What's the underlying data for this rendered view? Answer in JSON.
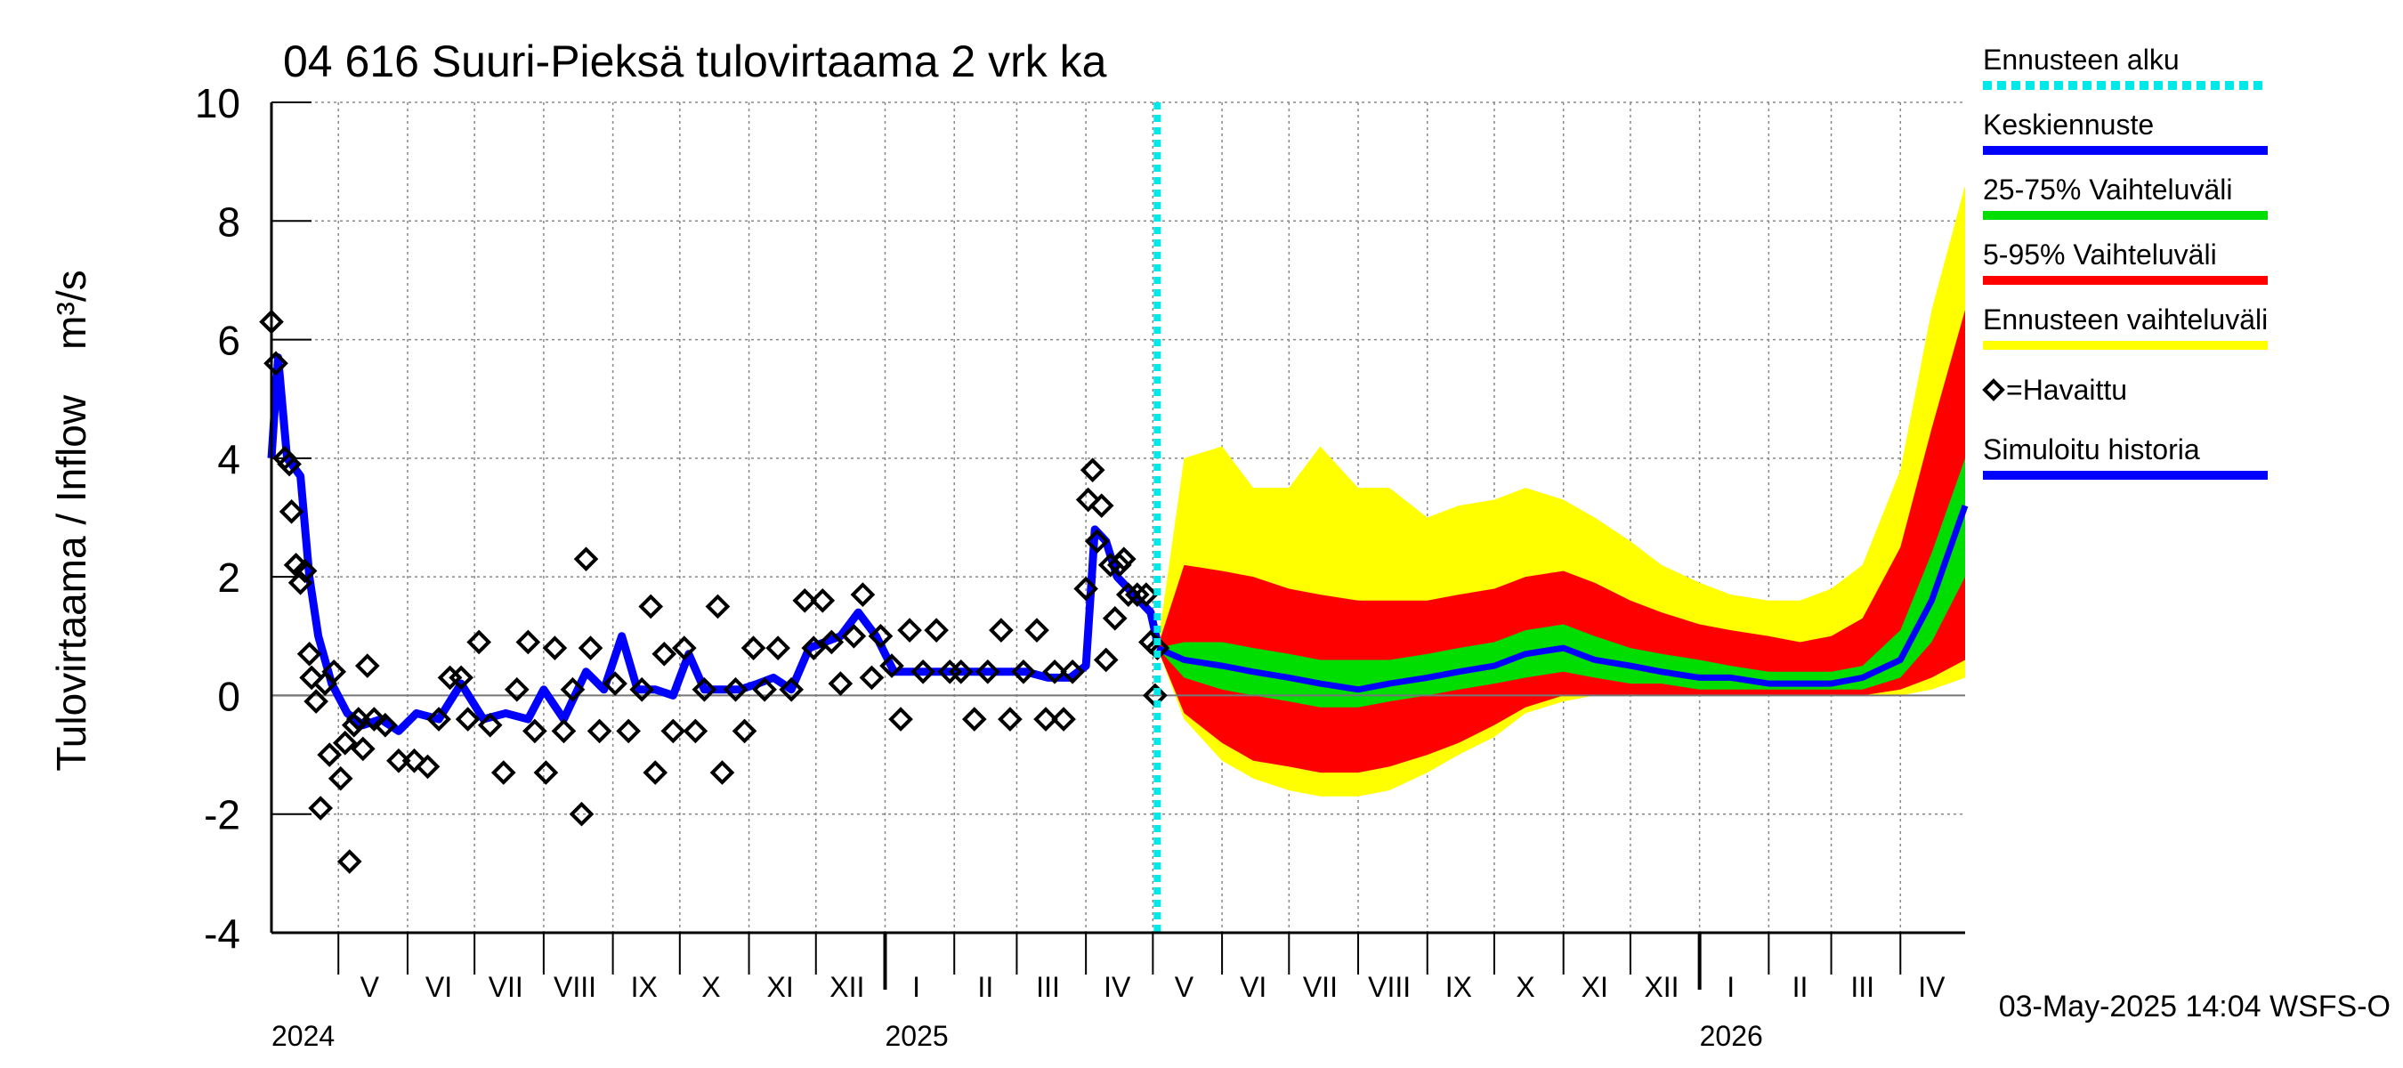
{
  "chart_data": {
    "type": "line",
    "title": "04 616 Suuri-Pieksä tulovirtaama 2 vrk ka",
    "ylabel": "Tulovirtaama / Inflow    m³/s",
    "ylim": [
      -4,
      10
    ],
    "yticks": [
      "-4",
      "-2",
      "0",
      "2",
      "4",
      "6",
      "8",
      "10"
    ],
    "grid": true,
    "legend_position": "right",
    "footer": "03-May-2025 14:04 WSFS-O",
    "x_range": [
      "2024-04-01",
      "2026-04-30"
    ],
    "forecast_start": "2025-05-03",
    "month_labels": [
      {
        "label": "V",
        "date": "2024-05-15"
      },
      {
        "label": "VI",
        "date": "2024-06-15"
      },
      {
        "label": "VII",
        "date": "2024-07-15"
      },
      {
        "label": "VIII",
        "date": "2024-08-15"
      },
      {
        "label": "IX",
        "date": "2024-09-15"
      },
      {
        "label": "X",
        "date": "2024-10-15"
      },
      {
        "label": "XI",
        "date": "2024-11-15"
      },
      {
        "label": "XII",
        "date": "2024-12-15"
      },
      {
        "label": "I",
        "date": "2025-01-15"
      },
      {
        "label": "II",
        "date": "2025-02-15"
      },
      {
        "label": "III",
        "date": "2025-03-15"
      },
      {
        "label": "IV",
        "date": "2025-04-15"
      },
      {
        "label": "V",
        "date": "2025-05-15"
      },
      {
        "label": "VI",
        "date": "2025-06-15"
      },
      {
        "label": "VII",
        "date": "2025-07-15"
      },
      {
        "label": "VIII",
        "date": "2025-08-15"
      },
      {
        "label": "IX",
        "date": "2025-09-15"
      },
      {
        "label": "X",
        "date": "2025-10-15"
      },
      {
        "label": "XI",
        "date": "2025-11-15"
      },
      {
        "label": "XII",
        "date": "2025-12-15"
      },
      {
        "label": "I",
        "date": "2026-01-15"
      },
      {
        "label": "II",
        "date": "2026-02-15"
      },
      {
        "label": "III",
        "date": "2026-03-15"
      },
      {
        "label": "IV",
        "date": "2026-04-15"
      }
    ],
    "year_labels": [
      {
        "label": "2024",
        "date": "2024-04-01"
      },
      {
        "label": "2025",
        "date": "2025-01-01"
      },
      {
        "label": "2026",
        "date": "2026-01-01"
      }
    ],
    "legend": [
      {
        "label": "Ennusteen alku",
        "color": "#00e8e8",
        "style": "dotted"
      },
      {
        "label": "Keskiennuste",
        "color": "#0000ff",
        "style": "solid"
      },
      {
        "label": "25-75% Vaihteluväli",
        "color": "#00dd00",
        "style": "solid"
      },
      {
        "label": "5-95% Vaihteluväli",
        "color": "#ff0000",
        "style": "solid"
      },
      {
        "label": "Ennusteen vaihteluväli",
        "color": "#ffff00",
        "style": "solid"
      },
      {
        "label": "=Havaittu",
        "color": "#000000",
        "style": "diamond"
      },
      {
        "label": "Simuloitu historia",
        "color": "#0000ff",
        "style": "solid"
      }
    ],
    "simulated_history": [
      [
        "2024-04-01",
        4.0
      ],
      [
        "2024-04-04",
        5.7
      ],
      [
        "2024-04-08",
        4.0
      ],
      [
        "2024-04-14",
        3.7
      ],
      [
        "2024-04-18",
        2.0
      ],
      [
        "2024-04-22",
        1.0
      ],
      [
        "2024-04-28",
        0.2
      ],
      [
        "2024-05-05",
        -0.3
      ],
      [
        "2024-05-12",
        -0.5
      ],
      [
        "2024-05-20",
        -0.4
      ],
      [
        "2024-05-28",
        -0.6
      ],
      [
        "2024-06-05",
        -0.3
      ],
      [
        "2024-06-15",
        -0.4
      ],
      [
        "2024-06-25",
        0.2
      ],
      [
        "2024-07-05",
        -0.4
      ],
      [
        "2024-07-15",
        -0.3
      ],
      [
        "2024-07-25",
        -0.4
      ],
      [
        "2024-08-01",
        0.1
      ],
      [
        "2024-08-10",
        -0.4
      ],
      [
        "2024-08-20",
        0.4
      ],
      [
        "2024-08-28",
        0.1
      ],
      [
        "2024-09-05",
        1.0
      ],
      [
        "2024-09-12",
        0.1
      ],
      [
        "2024-09-20",
        0.1
      ],
      [
        "2024-09-28",
        0.0
      ],
      [
        "2024-10-05",
        0.7
      ],
      [
        "2024-10-12",
        0.1
      ],
      [
        "2024-10-20",
        0.1
      ],
      [
        "2024-10-28",
        0.1
      ],
      [
        "2024-11-05",
        0.2
      ],
      [
        "2024-11-12",
        0.3
      ],
      [
        "2024-11-20",
        0.1
      ],
      [
        "2024-11-28",
        0.8
      ],
      [
        "2024-12-05",
        0.9
      ],
      [
        "2024-12-12",
        1.0
      ],
      [
        "2024-12-20",
        1.4
      ],
      [
        "2024-12-28",
        1.0
      ],
      [
        "2025-01-05",
        0.4
      ],
      [
        "2025-01-15",
        0.4
      ],
      [
        "2025-01-25",
        0.4
      ],
      [
        "2025-02-05",
        0.4
      ],
      [
        "2025-02-15",
        0.4
      ],
      [
        "2025-02-25",
        0.4
      ],
      [
        "2025-03-05",
        0.4
      ],
      [
        "2025-03-15",
        0.3
      ],
      [
        "2025-03-25",
        0.3
      ],
      [
        "2025-04-01",
        0.5
      ],
      [
        "2025-04-05",
        2.8
      ],
      [
        "2025-04-10",
        2.6
      ],
      [
        "2025-04-15",
        2.0
      ],
      [
        "2025-04-20",
        1.8
      ],
      [
        "2025-04-25",
        1.6
      ],
      [
        "2025-04-30",
        1.4
      ],
      [
        "2025-05-03",
        0.9
      ]
    ],
    "observed": [
      [
        "2024-04-01",
        6.3
      ],
      [
        "2024-04-03",
        5.6
      ],
      [
        "2024-04-07",
        4.0
      ],
      [
        "2024-04-09",
        3.9
      ],
      [
        "2024-04-10",
        3.1
      ],
      [
        "2024-04-12",
        2.2
      ],
      [
        "2024-04-14",
        1.9
      ],
      [
        "2024-04-16",
        2.1
      ],
      [
        "2024-04-18",
        0.7
      ],
      [
        "2024-04-19",
        0.3
      ],
      [
        "2024-04-21",
        -0.1
      ],
      [
        "2024-04-23",
        -1.9
      ],
      [
        "2024-04-25",
        0.2
      ],
      [
        "2024-04-27",
        -1.0
      ],
      [
        "2024-04-29",
        0.4
      ],
      [
        "2024-05-02",
        -1.4
      ],
      [
        "2024-05-04",
        -0.8
      ],
      [
        "2024-05-06",
        -2.8
      ],
      [
        "2024-05-08",
        -0.5
      ],
      [
        "2024-05-10",
        -0.4
      ],
      [
        "2024-05-12",
        -0.9
      ],
      [
        "2024-05-14",
        0.5
      ],
      [
        "2024-05-17",
        -0.4
      ],
      [
        "2024-05-22",
        -0.5
      ],
      [
        "2024-05-28",
        -1.1
      ],
      [
        "2024-06-04",
        -1.1
      ],
      [
        "2024-06-10",
        -1.2
      ],
      [
        "2024-06-15",
        -0.4
      ],
      [
        "2024-06-20",
        0.3
      ],
      [
        "2024-06-25",
        0.3
      ],
      [
        "2024-06-28",
        -0.4
      ],
      [
        "2024-07-03",
        0.9
      ],
      [
        "2024-07-08",
        -0.5
      ],
      [
        "2024-07-14",
        -1.3
      ],
      [
        "2024-07-20",
        0.1
      ],
      [
        "2024-07-25",
        0.9
      ],
      [
        "2024-07-28",
        -0.6
      ],
      [
        "2024-08-02",
        -1.3
      ],
      [
        "2024-08-06",
        0.8
      ],
      [
        "2024-08-10",
        -0.6
      ],
      [
        "2024-08-14",
        0.1
      ],
      [
        "2024-08-18",
        -2.0
      ],
      [
        "2024-08-20",
        2.3
      ],
      [
        "2024-08-22",
        0.8
      ],
      [
        "2024-08-26",
        -0.6
      ],
      [
        "2024-09-02",
        0.2
      ],
      [
        "2024-09-08",
        -0.6
      ],
      [
        "2024-09-14",
        0.1
      ],
      [
        "2024-09-18",
        1.5
      ],
      [
        "2024-09-20",
        -1.3
      ],
      [
        "2024-09-24",
        0.7
      ],
      [
        "2024-09-28",
        -0.6
      ],
      [
        "2024-10-03",
        0.8
      ],
      [
        "2024-10-08",
        -0.6
      ],
      [
        "2024-10-12",
        0.1
      ],
      [
        "2024-10-18",
        1.5
      ],
      [
        "2024-10-20",
        -1.3
      ],
      [
        "2024-10-26",
        0.1
      ],
      [
        "2024-10-30",
        -0.6
      ],
      [
        "2024-11-03",
        0.8
      ],
      [
        "2024-11-08",
        0.1
      ],
      [
        "2024-11-14",
        0.8
      ],
      [
        "2024-11-20",
        0.1
      ],
      [
        "2024-11-26",
        1.6
      ],
      [
        "2024-11-30",
        0.8
      ],
      [
        "2024-12-04",
        1.6
      ],
      [
        "2024-12-08",
        0.9
      ],
      [
        "2024-12-12",
        0.2
      ],
      [
        "2024-12-18",
        1.0
      ],
      [
        "2024-12-22",
        1.7
      ],
      [
        "2024-12-26",
        0.3
      ],
      [
        "2024-12-30",
        1.0
      ],
      [
        "2025-01-04",
        0.5
      ],
      [
        "2025-01-08",
        -0.4
      ],
      [
        "2025-01-12",
        1.1
      ],
      [
        "2025-01-18",
        0.4
      ],
      [
        "2025-01-24",
        1.1
      ],
      [
        "2025-01-30",
        0.4
      ],
      [
        "2025-02-04",
        0.4
      ],
      [
        "2025-02-10",
        -0.4
      ],
      [
        "2025-02-16",
        0.4
      ],
      [
        "2025-02-22",
        1.1
      ],
      [
        "2025-02-26",
        -0.4
      ],
      [
        "2025-03-04",
        0.4
      ],
      [
        "2025-03-10",
        1.1
      ],
      [
        "2025-03-14",
        -0.4
      ],
      [
        "2025-03-18",
        0.4
      ],
      [
        "2025-03-22",
        -0.4
      ],
      [
        "2025-03-26",
        0.4
      ],
      [
        "2025-04-01",
        1.8
      ],
      [
        "2025-04-02",
        3.3
      ],
      [
        "2025-04-04",
        3.8
      ],
      [
        "2025-04-06",
        2.6
      ],
      [
        "2025-04-08",
        3.2
      ],
      [
        "2025-04-10",
        0.6
      ],
      [
        "2025-04-12",
        2.2
      ],
      [
        "2025-04-14",
        1.3
      ],
      [
        "2025-04-16",
        2.2
      ],
      [
        "2025-04-18",
        2.3
      ],
      [
        "2025-04-20",
        1.7
      ],
      [
        "2025-04-24",
        1.7
      ],
      [
        "2025-04-28",
        1.7
      ],
      [
        "2025-04-30",
        0.9
      ],
      [
        "2025-05-02",
        0.0
      ],
      [
        "2025-05-03",
        0.8
      ]
    ],
    "forecast": [
      {
        "date": "2025-05-03",
        "median": 0.8,
        "p25": 0.8,
        "p75": 0.8,
        "p5": 0.8,
        "p95": 0.8,
        "min": 0.8,
        "max": 0.8
      },
      {
        "date": "2025-05-15",
        "median": 0.6,
        "p25": 0.3,
        "p75": 0.9,
        "p5": -0.3,
        "p95": 2.2,
        "min": -0.4,
        "max": 4.0
      },
      {
        "date": "2025-06-01",
        "median": 0.5,
        "p25": 0.1,
        "p75": 0.9,
        "p5": -0.8,
        "p95": 2.1,
        "min": -1.1,
        "max": 4.2
      },
      {
        "date": "2025-06-15",
        "median": 0.4,
        "p25": 0.0,
        "p75": 0.8,
        "p5": -1.1,
        "p95": 2.0,
        "min": -1.4,
        "max": 3.5
      },
      {
        "date": "2025-07-01",
        "median": 0.3,
        "p25": -0.1,
        "p75": 0.7,
        "p5": -1.2,
        "p95": 1.8,
        "min": -1.6,
        "max": 3.5
      },
      {
        "date": "2025-07-15",
        "median": 0.2,
        "p25": -0.2,
        "p75": 0.6,
        "p5": -1.3,
        "p95": 1.7,
        "min": -1.7,
        "max": 4.2
      },
      {
        "date": "2025-08-01",
        "median": 0.1,
        "p25": -0.2,
        "p75": 0.6,
        "p5": -1.3,
        "p95": 1.6,
        "min": -1.7,
        "max": 3.5
      },
      {
        "date": "2025-08-15",
        "median": 0.2,
        "p25": -0.1,
        "p75": 0.6,
        "p5": -1.2,
        "p95": 1.6,
        "min": -1.6,
        "max": 3.5
      },
      {
        "date": "2025-09-01",
        "median": 0.3,
        "p25": 0.0,
        "p75": 0.7,
        "p5": -1.0,
        "p95": 1.6,
        "min": -1.3,
        "max": 3.0
      },
      {
        "date": "2025-09-15",
        "median": 0.4,
        "p25": 0.1,
        "p75": 0.8,
        "p5": -0.8,
        "p95": 1.7,
        "min": -1.0,
        "max": 3.2
      },
      {
        "date": "2025-10-01",
        "median": 0.5,
        "p25": 0.2,
        "p75": 0.9,
        "p5": -0.5,
        "p95": 1.8,
        "min": -0.7,
        "max": 3.3
      },
      {
        "date": "2025-10-15",
        "median": 0.7,
        "p25": 0.3,
        "p75": 1.1,
        "p5": -0.2,
        "p95": 2.0,
        "min": -0.3,
        "max": 3.5
      },
      {
        "date": "2025-11-01",
        "median": 0.8,
        "p25": 0.4,
        "p75": 1.2,
        "p5": 0.0,
        "p95": 2.1,
        "min": -0.1,
        "max": 3.3
      },
      {
        "date": "2025-11-15",
        "median": 0.6,
        "p25": 0.3,
        "p75": 1.0,
        "p5": 0.0,
        "p95": 1.9,
        "min": 0.0,
        "max": 3.0
      },
      {
        "date": "2025-12-01",
        "median": 0.5,
        "p25": 0.2,
        "p75": 0.8,
        "p5": 0.0,
        "p95": 1.6,
        "min": 0.0,
        "max": 2.6
      },
      {
        "date": "2025-12-15",
        "median": 0.4,
        "p25": 0.2,
        "p75": 0.7,
        "p5": 0.0,
        "p95": 1.4,
        "min": 0.0,
        "max": 2.2
      },
      {
        "date": "2026-01-01",
        "median": 0.3,
        "p25": 0.1,
        "p75": 0.6,
        "p5": 0.0,
        "p95": 1.2,
        "min": 0.0,
        "max": 1.9
      },
      {
        "date": "2026-01-15",
        "median": 0.3,
        "p25": 0.1,
        "p75": 0.5,
        "p5": 0.0,
        "p95": 1.1,
        "min": 0.0,
        "max": 1.7
      },
      {
        "date": "2026-02-01",
        "median": 0.2,
        "p25": 0.1,
        "p75": 0.4,
        "p5": 0.0,
        "p95": 1.0,
        "min": 0.0,
        "max": 1.6
      },
      {
        "date": "2026-02-15",
        "median": 0.2,
        "p25": 0.1,
        "p75": 0.4,
        "p5": 0.0,
        "p95": 0.9,
        "min": 0.0,
        "max": 1.6
      },
      {
        "date": "2026-03-01",
        "median": 0.2,
        "p25": 0.1,
        "p75": 0.4,
        "p5": 0.0,
        "p95": 1.0,
        "min": 0.0,
        "max": 1.8
      },
      {
        "date": "2026-03-15",
        "median": 0.3,
        "p25": 0.1,
        "p75": 0.5,
        "p5": 0.0,
        "p95": 1.3,
        "min": 0.0,
        "max": 2.2
      },
      {
        "date": "2026-04-01",
        "median": 0.6,
        "p25": 0.3,
        "p75": 1.1,
        "p5": 0.1,
        "p95": 2.5,
        "min": 0.0,
        "max": 3.8
      },
      {
        "date": "2026-04-15",
        "median": 1.6,
        "p25": 0.9,
        "p75": 2.4,
        "p5": 0.3,
        "p95": 4.5,
        "min": 0.1,
        "max": 6.5
      },
      {
        "date": "2026-04-30",
        "median": 3.2,
        "p25": 2.0,
        "p75": 4.0,
        "p5": 0.6,
        "p95": 6.5,
        "min": 0.3,
        "max": 8.6
      }
    ]
  }
}
